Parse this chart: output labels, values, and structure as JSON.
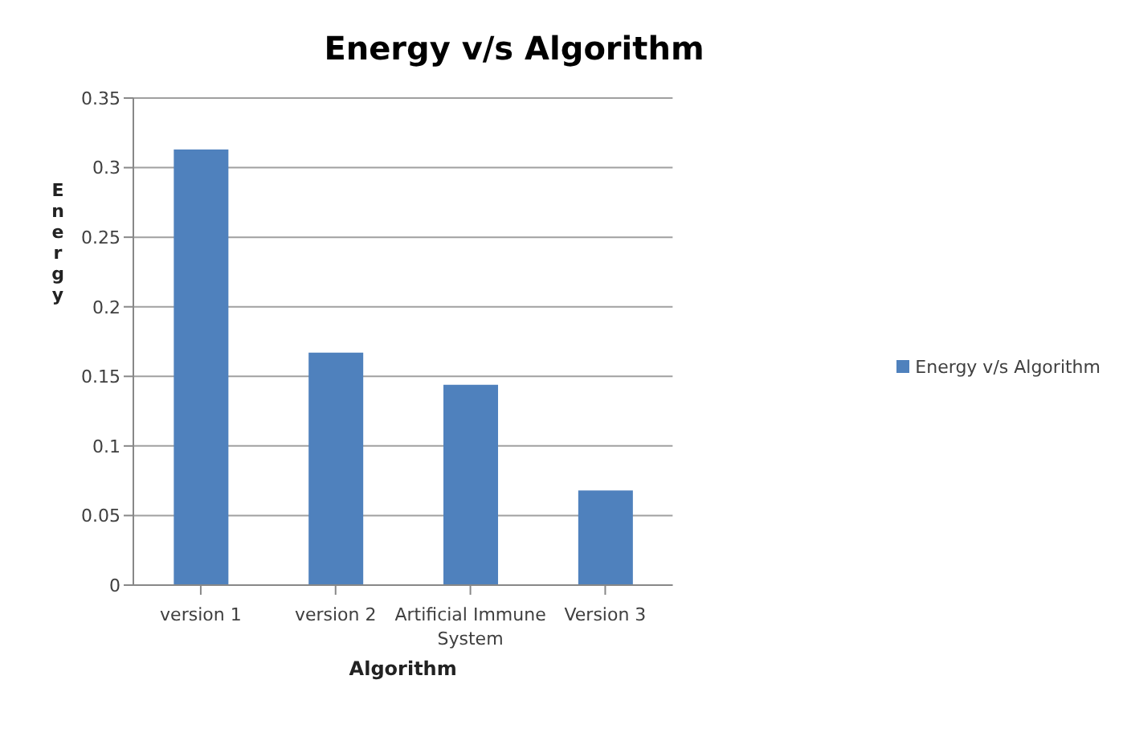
{
  "chart_data": {
    "type": "bar",
    "title": "Energy v/s Algorithm",
    "xlabel": "Algorithm",
    "ylabel": "Energy",
    "categories": [
      "version 1",
      "version 2",
      "Artificial Immune System",
      "Version 3"
    ],
    "series": [
      {
        "name": "Energy v/s Algorithm",
        "color": "#4f81bd",
        "values": [
          0.313,
          0.167,
          0.144,
          0.068
        ]
      }
    ],
    "ylim": [
      0,
      0.35
    ],
    "yticks": [
      0,
      0.05,
      0.1,
      0.15,
      0.2,
      0.25,
      0.3,
      0.35
    ],
    "grid": "y",
    "legend": "right"
  }
}
